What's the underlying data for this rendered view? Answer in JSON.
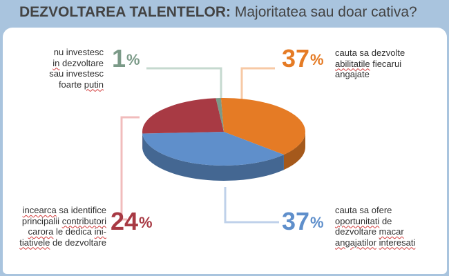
{
  "title_bold": "DEZVOLTAREA TALENTELOR:",
  "title_rest": "Majoritatea sau doar cativa?",
  "chart_data": {
    "type": "pie",
    "style": "3d",
    "slices": [
      {
        "value": 37,
        "label": "37%",
        "color": "#e57b25",
        "description": [
          "cauta sa dezvolte",
          "abilitatile fiecarui",
          "angajate"
        ]
      },
      {
        "value": 37,
        "label": "37%",
        "color": "#5f8fcb",
        "description": [
          "cauta sa ofere",
          "oportunitati de",
          "dezvoltare macar",
          "angajatilor interesati"
        ]
      },
      {
        "value": 24,
        "label": "24%",
        "color": "#a83a44",
        "description": [
          "incearca sa identifice",
          "principalii contributori",
          "carora le dedica ini-",
          "tiativele de dezvoltare"
        ]
      },
      {
        "value": 1,
        "label": "1%",
        "color": "#7b9a88",
        "description": [
          "nu investesc",
          "in dezvoltare",
          "sau investesc",
          "foarte putin"
        ]
      }
    ]
  }
}
